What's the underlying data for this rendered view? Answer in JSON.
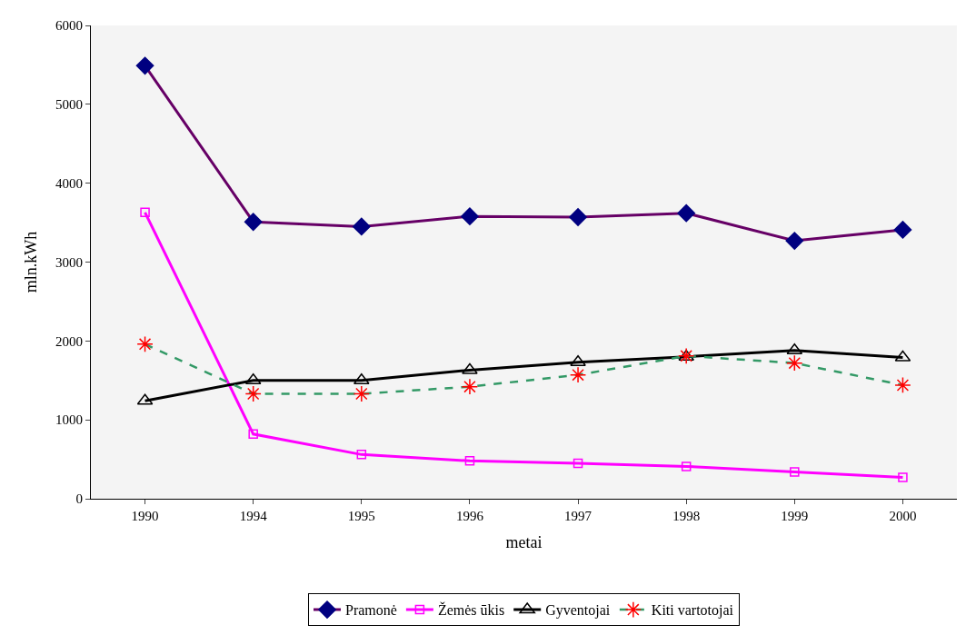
{
  "chart_data": {
    "type": "line",
    "xlabel": "metai",
    "ylabel": "mln.kWh",
    "categories": [
      "1990",
      "1994",
      "1995",
      "1996",
      "1997",
      "1998",
      "1999",
      "2000"
    ],
    "ylim": [
      0,
      6000
    ],
    "yticks": [
      0,
      1000,
      2000,
      3000,
      4000,
      5000,
      6000
    ],
    "grid": false,
    "legend": "bottom",
    "series": [
      {
        "name": "Pramonė",
        "color": "#660066",
        "marker": "diamond",
        "line_style": "solid",
        "values": [
          5490,
          3510,
          3450,
          3580,
          3570,
          3620,
          3270,
          3410
        ]
      },
      {
        "name": "Žemės ūkis",
        "color": "#ff00ff",
        "marker": "square",
        "line_style": "solid",
        "values": [
          3630,
          820,
          560,
          480,
          450,
          410,
          340,
          270
        ]
      },
      {
        "name": "Gyventojai",
        "color": "#000000",
        "marker": "triangle",
        "line_style": "solid",
        "values": [
          1240,
          1500,
          1500,
          1630,
          1730,
          1800,
          1880,
          1790
        ]
      },
      {
        "name": "Kiti vartotojai",
        "color": "#339966",
        "marker": "cross",
        "line_style": "dashed",
        "values": [
          1960,
          1330,
          1330,
          1420,
          1570,
          1810,
          1720,
          1440
        ]
      }
    ]
  }
}
